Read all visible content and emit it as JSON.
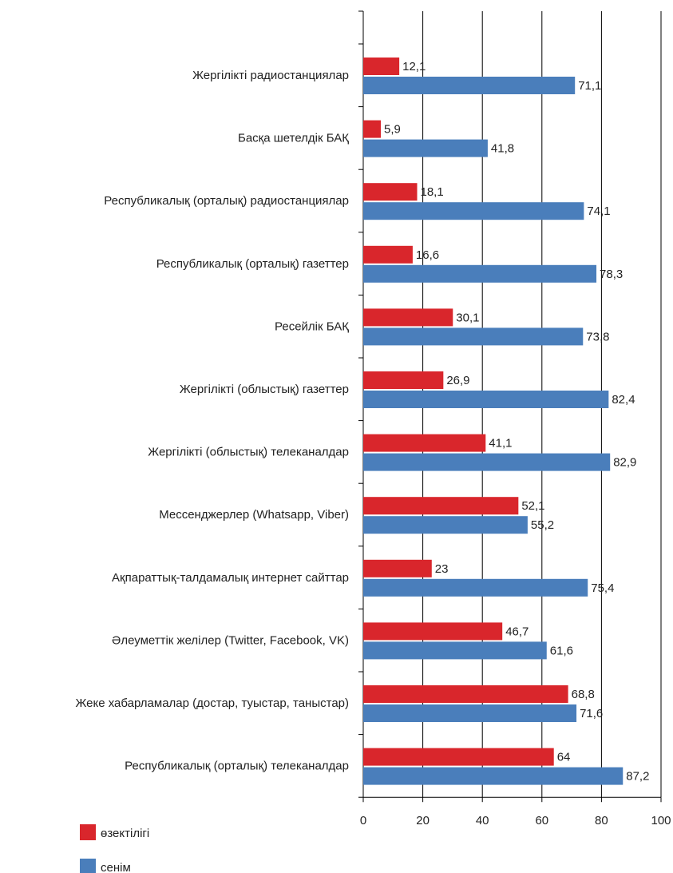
{
  "chart_data": {
    "type": "bar",
    "orientation": "horizontal",
    "categories": [
      "Жергілікті радиостанциялар",
      "Басқа шетелдік БАҚ",
      "Республикалық (орталық) радиостанциялар",
      "Республикалық (орталық) газеттер",
      "Ресейлік БАҚ",
      "Жергілікті (облыстық) газеттер",
      "Жергілікті (облыстық) телеканалдар",
      "Мессенджерлер (Whatsapp, Viber)",
      "Ақпараттық-талдамалық интернет сайттар",
      "Әлеуметтік желілер (Twitter, Facebook, VK)",
      "Жеке хабарламалар (достар, туыстар, таныстар)",
      "Республикалық (орталық) телеканалдар"
    ],
    "series": [
      {
        "name": "өзектілігі",
        "color": "#d9262c",
        "values": [
          12.1,
          5.9,
          18.1,
          16.6,
          30.1,
          26.9,
          41.1,
          52.1,
          23,
          46.7,
          68.8,
          64
        ],
        "value_labels": [
          "12,1",
          "5,9",
          "18,1",
          "16,6",
          "30,1",
          "26,9",
          "41,1",
          "52,1",
          "23",
          "46,7",
          "68,8",
          "64"
        ]
      },
      {
        "name": "сенім",
        "color": "#4a7ebb",
        "values": [
          71.1,
          41.8,
          74.1,
          78.3,
          73.8,
          82.4,
          82.9,
          55.2,
          75.4,
          61.6,
          71.6,
          87.2
        ],
        "value_labels": [
          "71,1",
          "41,8",
          "74,1",
          "78,3",
          "73,8",
          "82,4",
          "82,9",
          "55,2",
          "75,4",
          "61,6",
          "71,6",
          "87,2"
        ]
      }
    ],
    "xlim": [
      0,
      100
    ],
    "xticks": [
      0,
      20,
      40,
      60,
      80,
      100
    ],
    "grid": true,
    "legend": "bottom-left"
  }
}
